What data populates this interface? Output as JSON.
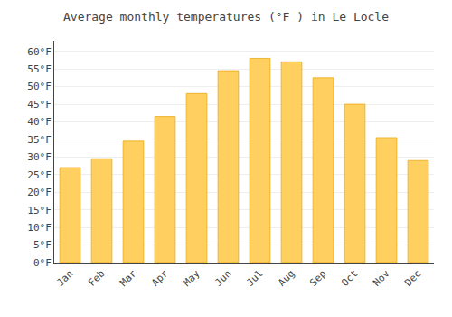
{
  "chart_data": {
    "type": "bar",
    "title": "Average monthly temperatures (°F ) in Le Locle",
    "categories": [
      "Jan",
      "Feb",
      "Mar",
      "Apr",
      "May",
      "Jun",
      "Jul",
      "Aug",
      "Sep",
      "Oct",
      "Nov",
      "Dec"
    ],
    "values": [
      27,
      29.5,
      34.5,
      41.5,
      48,
      54.5,
      58,
      57,
      52.5,
      45,
      35.5,
      29
    ],
    "color": "#FFD060",
    "ylim": [
      0,
      63
    ],
    "yticks": [
      {
        "value": 0,
        "label": "0°F"
      },
      {
        "value": 5,
        "label": "5°F"
      },
      {
        "value": 10,
        "label": "10°F"
      },
      {
        "value": 15,
        "label": "15°F"
      },
      {
        "value": 20,
        "label": "20°F"
      },
      {
        "value": 25,
        "label": "25°F"
      },
      {
        "value": 30,
        "label": "30°F"
      },
      {
        "value": 35,
        "label": "35°F"
      },
      {
        "value": 40,
        "label": "40°F"
      },
      {
        "value": 45,
        "label": "45°F"
      },
      {
        "value": 50,
        "label": "50°F"
      },
      {
        "value": 55,
        "label": "55°F"
      },
      {
        "value": 60,
        "label": "60°F"
      }
    ],
    "grid": true
  }
}
